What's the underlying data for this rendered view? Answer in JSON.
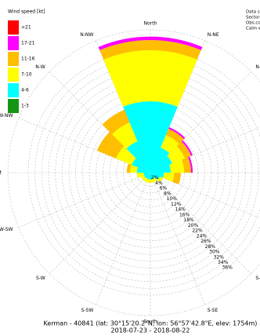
{
  "chart_data": {
    "type": "wind_rose",
    "legend_title": "Wind speed [kt]",
    "info_lines": [
      "Data sc",
      "Sectors",
      "Obs.co",
      "Calm w"
    ],
    "footer": [
      "Kerman - 40841 (lat: 30°15'20.2\"N, lon: 56°57'42.8\"E, elev: 1754m)",
      "2018-07-23 - 2018-08-22"
    ],
    "directions": [
      "North",
      null,
      "N-NE",
      null,
      "N-E",
      null,
      "E-",
      null,
      null,
      null,
      "E-",
      null,
      "S-E",
      null,
      "S-SE",
      null,
      "South",
      null,
      "S-SW",
      null,
      "S-W",
      null,
      "W-SW",
      null,
      "West",
      null,
      "W-NW",
      null,
      "N-W",
      null,
      "N-NW",
      null
    ],
    "rlim": [
      0,
      42
    ],
    "rticks": [
      {
        "value": 2,
        "label": "2%"
      },
      {
        "value": 4,
        "label": "4%"
      },
      {
        "value": 6,
        "label": "6%"
      },
      {
        "value": 8,
        "label": "8%"
      },
      {
        "value": 10,
        "label": "10%"
      },
      {
        "value": 12,
        "label": "12%"
      },
      {
        "value": 14,
        "label": "14%"
      },
      {
        "value": 16,
        "label": "16%"
      },
      {
        "value": 18,
        "label": "18%"
      },
      {
        "value": 20,
        "label": "20%"
      },
      {
        "value": 22,
        "label": "22%"
      },
      {
        "value": 24,
        "label": "24%"
      },
      {
        "value": 26,
        "label": "26%"
      },
      {
        "value": 28,
        "label": "28%"
      },
      {
        "value": 30,
        "label": "30%"
      },
      {
        "value": 32,
        "label": "32%"
      },
      {
        "value": 34,
        "label": "34%"
      },
      {
        "value": 36,
        "label": "36%"
      }
    ],
    "sector_start": 337.5,
    "sector_width": 22.5,
    "series": [
      {
        "name": "1-3",
        "color": "#149614",
        "values": [
          0,
          0,
          0,
          0,
          0,
          0,
          0,
          0,
          0,
          0,
          0,
          0,
          0,
          0,
          0,
          0
        ]
      },
      {
        "name": "4-6",
        "color": "#00ffff",
        "values": [
          21,
          21,
          8,
          7,
          6,
          4,
          3,
          2,
          2,
          2,
          2,
          2,
          2,
          4,
          6,
          10
        ]
      },
      {
        "name": "7-10",
        "color": "#ffff00",
        "values": [
          15,
          15,
          4,
          4,
          4,
          3,
          1,
          1,
          1,
          1,
          1,
          1,
          2,
          2,
          5,
          6
        ]
      },
      {
        "name": "11-16",
        "color": "#ffbe00",
        "values": [
          3,
          3,
          2,
          2,
          2,
          2,
          0,
          0,
          0,
          0,
          0,
          0,
          0,
          1,
          6,
          4
        ]
      },
      {
        "name": "17-21",
        "color": "#ff00ff",
        "values": [
          1,
          1,
          0.5,
          0.5,
          0.5,
          0,
          0,
          0,
          0,
          0,
          0,
          0,
          0,
          0,
          0,
          0
        ]
      },
      {
        "name": ">21",
        "color": "#ff0000",
        "values": [
          0,
          0,
          0,
          0,
          0,
          0,
          0,
          0,
          0,
          0,
          0,
          0,
          0,
          0,
          0,
          0
        ]
      }
    ]
  }
}
